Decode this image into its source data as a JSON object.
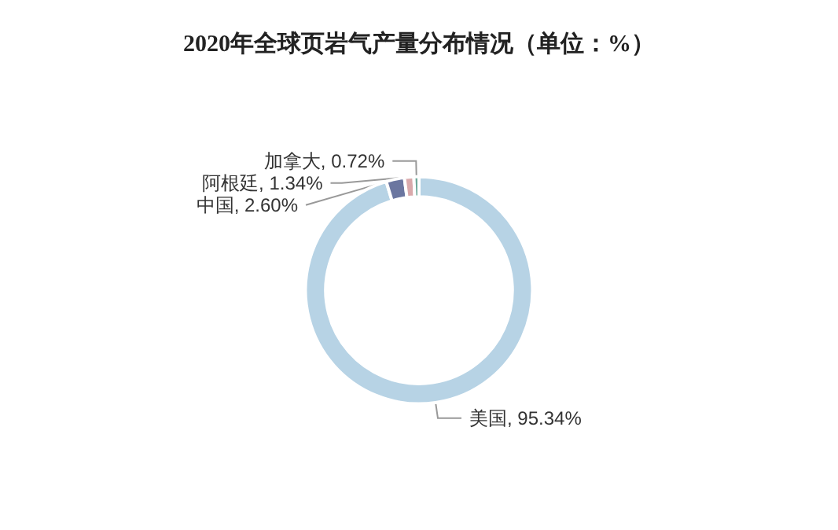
{
  "chart_data": {
    "type": "donut",
    "title": "2020年全球页岩气产量分布情况（单位：%）",
    "categories": [
      "美国",
      "中国",
      "阿根廷",
      "加拿大"
    ],
    "values": [
      95.34,
      2.6,
      1.34,
      0.72
    ],
    "value_labels": [
      "95.34%",
      "2.60%",
      "1.34%",
      "0.72%"
    ],
    "colors": [
      "#b7d3e5",
      "#6b76a0",
      "#d9a9ab",
      "#6fa89a"
    ],
    "legend": false
  }
}
